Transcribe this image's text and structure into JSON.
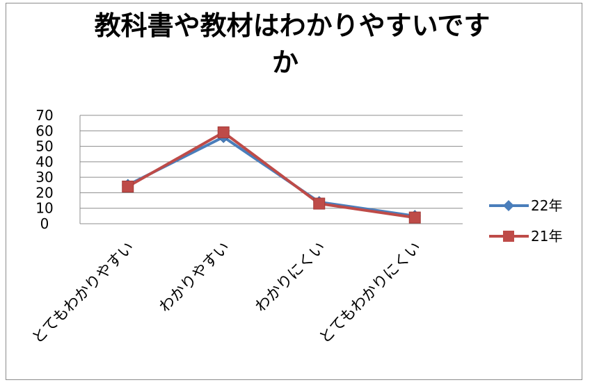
{
  "chart_data": {
    "type": "line",
    "title_lines": [
      "教科書や教材はわかりやすいです",
      "か"
    ],
    "categories": [
      "とてもわかりやすい",
      "わかりやすい",
      "わかりにくい",
      "とてもわかりにくい"
    ],
    "series": [
      {
        "name": "22年",
        "values": [
          25,
          56,
          14,
          5
        ],
        "color": "#4a7ebb",
        "marker": "diamond"
      },
      {
        "name": "21年",
        "values": [
          24,
          59,
          13,
          4
        ],
        "color": "#be4b48",
        "marker": "square"
      }
    ],
    "ylim": [
      0,
      70
    ],
    "yticks": [
      0,
      10,
      20,
      30,
      40,
      50,
      60,
      70
    ],
    "grid": true,
    "legend": "right"
  }
}
